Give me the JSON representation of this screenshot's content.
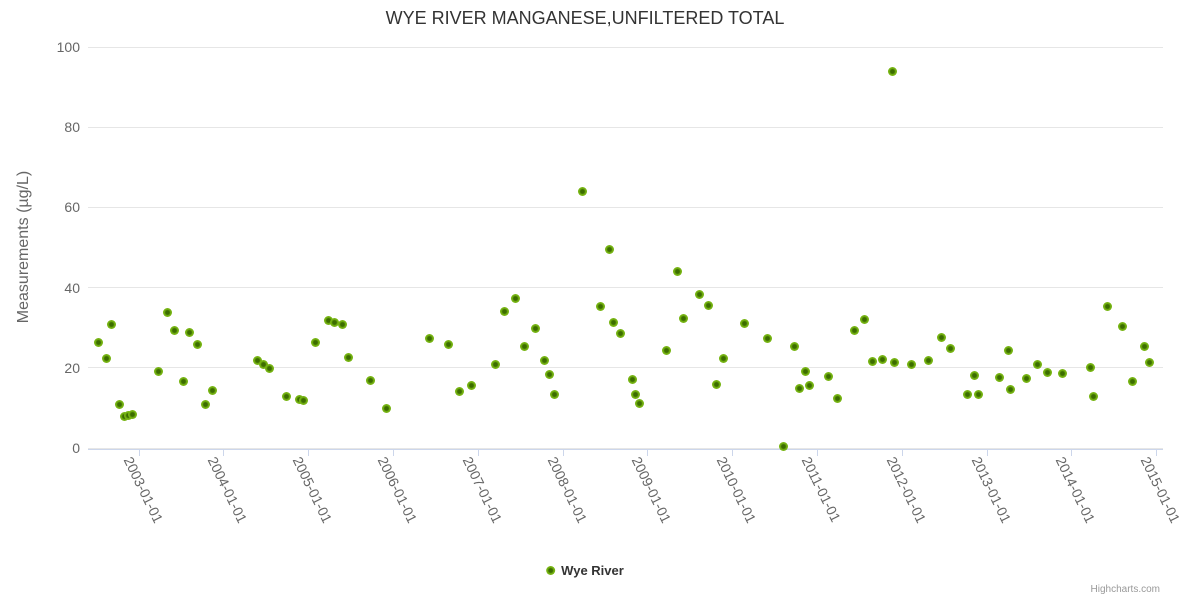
{
  "credits": {
    "label": "Highcharts.com"
  },
  "chart_data": {
    "type": "scatter",
    "title": "WYE RIVER MANGANESE,UNFILTERED TOTAL",
    "xlabel": "",
    "ylabel": "Measurements (µg/L)",
    "point_color": "#76b412",
    "grid_color": "#e6e6e6",
    "axis_line_color": "#ccd6eb",
    "legend_position": "bottom-center",
    "x_axis": {
      "type": "datetime",
      "min": 2002.404,
      "max": 2015.08,
      "tick_values": [
        2003,
        2004,
        2005,
        2006,
        2007,
        2008,
        2009,
        2010,
        2011,
        2012,
        2013,
        2014,
        2015
      ],
      "tick_labels": [
        "2003-01-01",
        "2004-01-01",
        "2005-01-01",
        "2006-01-01",
        "2007-01-01",
        "2008-01-01",
        "2009-01-01",
        "2010-01-01",
        "2011-01-01",
        "2012-01-01",
        "2013-01-01",
        "2014-01-01",
        "2015-01-01"
      ],
      "label_rotation_deg": 64
    },
    "y_axis": {
      "min": 0,
      "max": 100,
      "tick_values": [
        0,
        20,
        40,
        60,
        80,
        100
      ],
      "tick_labels": [
        "0",
        "20",
        "40",
        "60",
        "80",
        "100"
      ],
      "grid": true
    },
    "series": [
      {
        "name": "Wye River",
        "color": "#76b412",
        "points": [
          [
            2002.53,
            26.3
          ],
          [
            2002.62,
            22.2
          ],
          [
            2002.68,
            30.9
          ],
          [
            2002.78,
            10.8
          ],
          [
            2002.83,
            7.9
          ],
          [
            2002.88,
            8.2
          ],
          [
            2002.93,
            8.4
          ],
          [
            2003.24,
            19.2
          ],
          [
            2003.34,
            33.8
          ],
          [
            2003.42,
            29.4
          ],
          [
            2003.53,
            16.5
          ],
          [
            2003.6,
            28.8
          ],
          [
            2003.69,
            25.9
          ],
          [
            2003.79,
            10.8
          ],
          [
            2003.87,
            14.4
          ],
          [
            2004.4,
            21.8
          ],
          [
            2004.47,
            20.8
          ],
          [
            2004.54,
            19.9
          ],
          [
            2004.75,
            12.8
          ],
          [
            2004.9,
            12.2
          ],
          [
            2004.95,
            11.9
          ],
          [
            2005.09,
            26.3
          ],
          [
            2005.24,
            31.9
          ],
          [
            2005.31,
            31.3
          ],
          [
            2005.4,
            30.7
          ],
          [
            2005.47,
            22.6
          ],
          [
            2005.74,
            16.9
          ],
          [
            2005.92,
            9.8
          ],
          [
            2006.43,
            27.3
          ],
          [
            2006.66,
            25.7
          ],
          [
            2006.79,
            14.0
          ],
          [
            2006.93,
            15.7
          ],
          [
            2007.21,
            20.7
          ],
          [
            2007.31,
            34.1
          ],
          [
            2007.45,
            37.2
          ],
          [
            2007.55,
            25.3
          ],
          [
            2007.68,
            29.7
          ],
          [
            2007.79,
            21.9
          ],
          [
            2007.84,
            18.3
          ],
          [
            2007.9,
            13.3
          ],
          [
            2008.24,
            64.0
          ],
          [
            2008.45,
            35.4
          ],
          [
            2008.55,
            49.4
          ],
          [
            2008.6,
            31.3
          ],
          [
            2008.68,
            28.6
          ],
          [
            2008.82,
            17.2
          ],
          [
            2008.86,
            13.3
          ],
          [
            2008.91,
            11.2
          ],
          [
            2009.23,
            24.3
          ],
          [
            2009.35,
            44.0
          ],
          [
            2009.43,
            32.3
          ],
          [
            2009.62,
            38.4
          ],
          [
            2009.72,
            35.6
          ],
          [
            2009.81,
            15.8
          ],
          [
            2009.9,
            22.3
          ],
          [
            2010.14,
            31.1
          ],
          [
            2010.42,
            27.3
          ],
          [
            2010.6,
            0.4
          ],
          [
            2010.73,
            25.3
          ],
          [
            2010.79,
            14.8
          ],
          [
            2010.86,
            19.1
          ],
          [
            2010.91,
            15.7
          ],
          [
            2011.13,
            17.8
          ],
          [
            2011.24,
            12.3
          ],
          [
            2011.44,
            29.4
          ],
          [
            2011.56,
            32.0
          ],
          [
            2011.66,
            21.5
          ],
          [
            2011.77,
            22.0
          ],
          [
            2011.89,
            94.0
          ],
          [
            2011.91,
            21.3
          ],
          [
            2012.11,
            20.8
          ],
          [
            2012.31,
            21.9
          ],
          [
            2012.47,
            27.6
          ],
          [
            2012.57,
            24.9
          ],
          [
            2012.77,
            13.3
          ],
          [
            2012.86,
            18.2
          ],
          [
            2012.9,
            13.4
          ],
          [
            2013.15,
            17.6
          ],
          [
            2013.26,
            24.3
          ],
          [
            2013.28,
            14.5
          ],
          [
            2013.47,
            17.3
          ],
          [
            2013.6,
            20.9
          ],
          [
            2013.72,
            18.8
          ],
          [
            2013.9,
            18.7
          ],
          [
            2014.23,
            20.1
          ],
          [
            2014.26,
            12.8
          ],
          [
            2014.43,
            35.3
          ],
          [
            2014.6,
            30.4
          ],
          [
            2014.72,
            16.7
          ],
          [
            2014.86,
            25.3
          ],
          [
            2014.92,
            21.2
          ]
        ]
      }
    ]
  }
}
